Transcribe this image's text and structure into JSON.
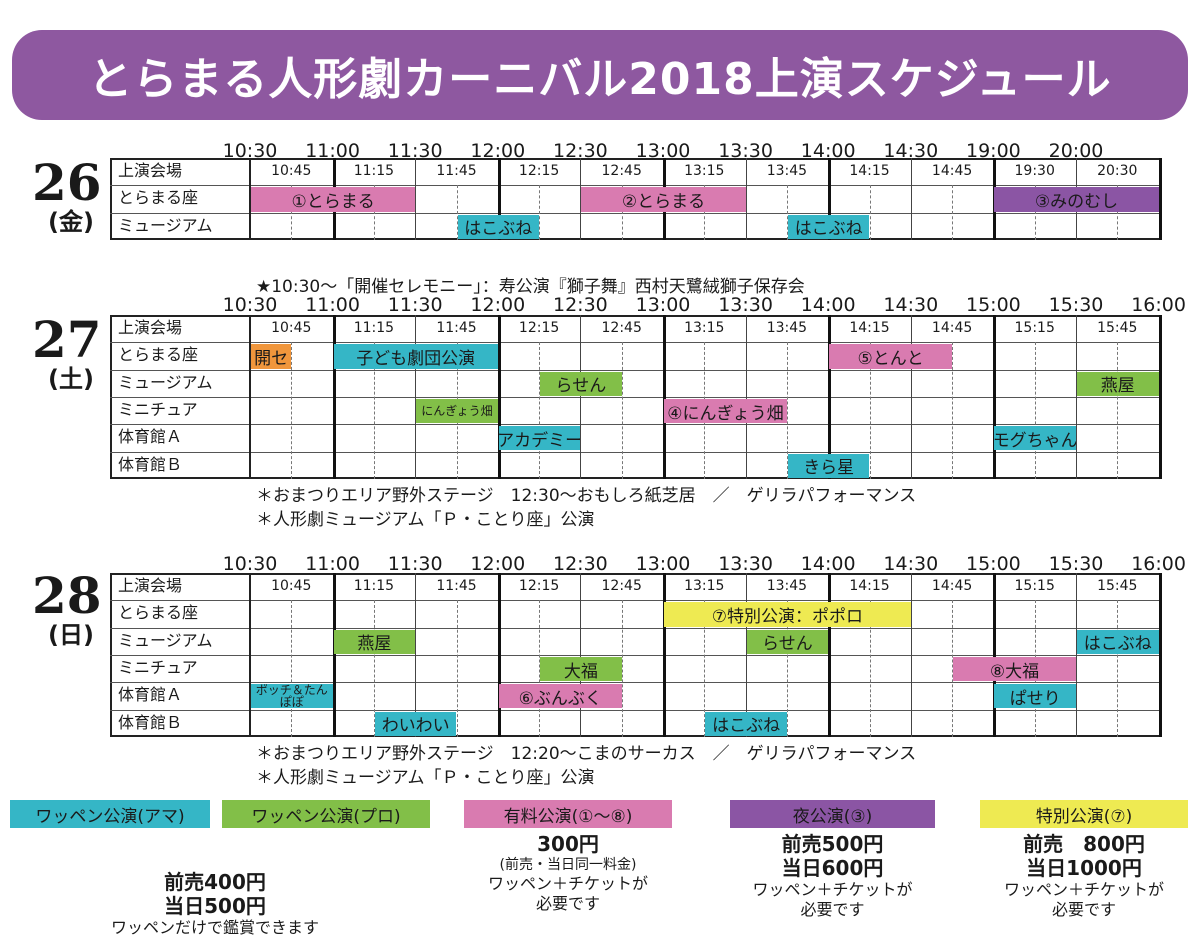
{
  "title": "とらまる人形劇カーニバル2018上演スケジュール",
  "colors": {
    "amateur": "#35b6c6",
    "pro": "#82bf48",
    "paid": "#d97bb0",
    "night": "#8b55a4",
    "special": "#eeea52",
    "kaisei": "#f0963c",
    "banner": "#8e58a0"
  },
  "days": [
    {
      "num": "26",
      "dow": "(金)",
      "ceremony": "",
      "ticks": [
        "10:30",
        "11:00",
        "11:30",
        "12:00",
        "12:30",
        "13:00",
        "13:30",
        "14:00",
        "14:30",
        "19:00",
        "20:00"
      ],
      "subticks": [
        "10:45",
        "11:15",
        "11:45",
        "12:15",
        "12:45",
        "13:15",
        "13:45",
        "14:15",
        "14:45",
        "19:30",
        "20:30"
      ],
      "rows": [
        "上演会場",
        "とらまる座",
        "ミュージアム"
      ],
      "events": [
        {
          "row": 1,
          "s": 0,
          "e": 4,
          "label": "①とらまる",
          "type": "paid"
        },
        {
          "row": 1,
          "s": 8,
          "e": 12,
          "label": "②とらまる",
          "type": "paid"
        },
        {
          "row": 1,
          "s": 18,
          "e": 22,
          "label": "③みのむし",
          "type": "night"
        },
        {
          "row": 2,
          "s": 5,
          "e": 7,
          "label": "はこぶね",
          "type": "amateur"
        },
        {
          "row": 2,
          "s": 13,
          "e": 15,
          "label": "はこぶね",
          "type": "amateur"
        }
      ],
      "notes": []
    },
    {
      "num": "27",
      "dow": "(土)",
      "ceremony": "★10:30〜「開催セレモニー」：寿公演『獅子舞』西村天鷺絨獅子保存会",
      "ticks": [
        "10:30",
        "11:00",
        "11:30",
        "12:00",
        "12:30",
        "13:00",
        "13:30",
        "14:00",
        "14:30",
        "15:00",
        "15:30",
        "16:00"
      ],
      "subticks": [
        "10:45",
        "11:15",
        "11:45",
        "12:15",
        "12:45",
        "13:15",
        "13:45",
        "14:15",
        "14:45",
        "15:15",
        "15:45"
      ],
      "rows": [
        "上演会場",
        "とらまる座",
        "ミュージアム",
        "ミニチュア",
        "体育館Ａ",
        "体育館Ｂ"
      ],
      "events": [
        {
          "row": 1,
          "s": 0,
          "e": 1,
          "label": "開セ",
          "type": "kaisei"
        },
        {
          "row": 1,
          "s": 2,
          "e": 6,
          "label": "子ども劇団公演",
          "type": "amateur"
        },
        {
          "row": 1,
          "s": 14,
          "e": 17,
          "label": "⑤とんと",
          "type": "paid"
        },
        {
          "row": 2,
          "s": 7,
          "e": 9,
          "label": "らせん",
          "type": "pro"
        },
        {
          "row": 2,
          "s": 20,
          "e": 22,
          "label": "燕屋",
          "type": "pro"
        },
        {
          "row": 3,
          "s": 4,
          "e": 6,
          "label": "にんぎょう畑",
          "type": "pro",
          "small": true
        },
        {
          "row": 3,
          "s": 10,
          "e": 13,
          "label": "④にんぎょう畑",
          "type": "paid"
        },
        {
          "row": 4,
          "s": 6,
          "e": 8,
          "label": "アカデミー",
          "type": "amateur"
        },
        {
          "row": 4,
          "s": 18,
          "e": 20,
          "label": "モグちゃん",
          "type": "amateur"
        },
        {
          "row": 5,
          "s": 13,
          "e": 15,
          "label": "きら星",
          "type": "amateur"
        }
      ],
      "notes": [
        "＊おまつりエリア野外ステージ　12:30〜おもしろ紙芝居　／　ゲリラパフォーマンス",
        "＊人形劇ミュージアム「Ｐ・ことり座」公演"
      ]
    },
    {
      "num": "28",
      "dow": "(日)",
      "ceremony": "",
      "ticks": [
        "10:30",
        "11:00",
        "11:30",
        "12:00",
        "12:30",
        "13:00",
        "13:30",
        "14:00",
        "14:30",
        "15:00",
        "15:30",
        "16:00"
      ],
      "subticks": [
        "10:45",
        "11:15",
        "11:45",
        "12:15",
        "12:45",
        "13:15",
        "13:45",
        "14:15",
        "14:45",
        "15:15",
        "15:45"
      ],
      "rows": [
        "上演会場",
        "とらまる座",
        "ミュージアム",
        "ミニチュア",
        "体育館Ａ",
        "体育館Ｂ"
      ],
      "events": [
        {
          "row": 1,
          "s": 10,
          "e": 16,
          "label": "⑦特別公演：ポポロ",
          "type": "special"
        },
        {
          "row": 2,
          "s": 2,
          "e": 4,
          "label": "燕屋",
          "type": "pro"
        },
        {
          "row": 2,
          "s": 12,
          "e": 14,
          "label": "らせん",
          "type": "pro"
        },
        {
          "row": 2,
          "s": 20,
          "e": 22,
          "label": "はこぶね",
          "type": "amateur"
        },
        {
          "row": 3,
          "s": 7,
          "e": 9,
          "label": "大福",
          "type": "pro"
        },
        {
          "row": 3,
          "s": 17,
          "e": 20,
          "label": "⑧大福",
          "type": "paid"
        },
        {
          "row": 4,
          "s": 0,
          "e": 2,
          "label": "ポッチ＆たんぽぽ",
          "type": "amateur",
          "small": true
        },
        {
          "row": 4,
          "s": 6,
          "e": 9,
          "label": "⑥ぶんぶく",
          "type": "paid"
        },
        {
          "row": 4,
          "s": 18,
          "e": 20,
          "label": "ぱせり",
          "type": "amateur"
        },
        {
          "row": 5,
          "s": 3,
          "e": 5,
          "label": "わいわい",
          "type": "amateur"
        },
        {
          "row": 5,
          "s": 11,
          "e": 13,
          "label": "はこぶね",
          "type": "amateur"
        }
      ],
      "notes": [
        "＊おまつりエリア野外ステージ　12:20〜こまのサーカス　／　ゲリラパフォーマンス",
        "＊人形劇ミュージアム「Ｐ・ことり座」公演"
      ]
    }
  ],
  "legend": [
    {
      "label": "ワッペン公演(アマ)",
      "type": "amateur"
    },
    {
      "label": "ワッペン公演(プロ)",
      "type": "pro"
    },
    {
      "label": "有料公演(①〜⑧)",
      "type": "paid"
    },
    {
      "label": "夜公演(③)",
      "type": "night"
    },
    {
      "label": "特別公演(⑦)",
      "type": "special"
    }
  ],
  "prices": [
    {
      "lines": [
        "前売400円",
        "当日500円",
        "ワッペンだけで鑑賞できます"
      ]
    },
    {
      "lines": [
        "300円",
        "(前売・当日同一料金)",
        "ワッペン＋チケットが",
        "必要です"
      ]
    },
    {
      "lines": [
        "前売500円",
        "当日600円",
        "ワッペン＋チケットが",
        "必要です"
      ]
    },
    {
      "lines": [
        "前売　800円",
        "当日1000円",
        "ワッペン＋チケットが",
        "必要です"
      ]
    }
  ]
}
